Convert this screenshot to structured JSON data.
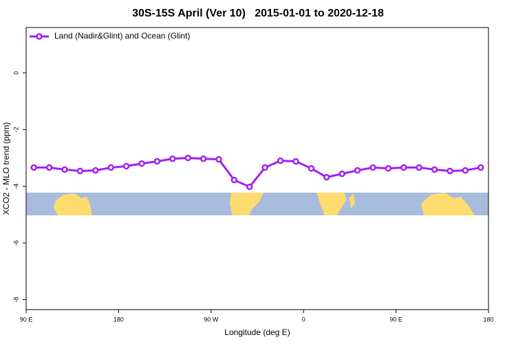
{
  "chart_data": {
    "type": "line",
    "title": "30S-15S April (Ver 10)   2015-01-01 to 2020-12-18",
    "xlabel": "Longitude (deg E)",
    "ylabel": "XCO2 - MLO trend (ppm)",
    "xlim": [
      90,
      540
    ],
    "ylim": [
      -8.35,
      1.6
    ],
    "xticks": [
      {
        "value": 90,
        "label": "90 E"
      },
      180,
      {
        "value": 270,
        "label": "90 W"
      },
      {
        "value": 360,
        "label": "0"
      },
      {
        "value": 450,
        "label": "90 E"
      },
      {
        "value": 540,
        "label": "180"
      }
    ],
    "yticks": [
      0,
      -2,
      -4,
      -6,
      -8
    ],
    "legend": "upper left",
    "series": [
      {
        "name": "Land (Nadir&Glint) and Ocean (Glint)",
        "color": "#a020f0",
        "x": [
          97.5,
          112.5,
          127.5,
          142.5,
          157.5,
          172.5,
          187.5,
          202.5,
          217.5,
          232.5,
          247.5,
          262.5,
          277.5,
          292.5,
          307.5,
          322.5,
          337.5,
          352.5,
          367.5,
          382.5,
          397.5,
          412.5,
          427.5,
          442.5,
          457.5,
          472.5,
          487.5,
          502.5,
          517.5,
          532.5
        ],
        "values": [
          -3.34,
          -3.34,
          -3.41,
          -3.46,
          -3.44,
          -3.34,
          -3.29,
          -3.2,
          -3.12,
          -3.03,
          -3.0,
          -3.03,
          -3.05,
          -3.78,
          -4.02,
          -3.34,
          -3.1,
          -3.12,
          -3.37,
          -3.68,
          -3.56,
          -3.44,
          -3.34,
          -3.37,
          -3.34,
          -3.34,
          -3.41,
          -3.46,
          -3.44,
          -3.34
        ]
      }
    ]
  }
}
